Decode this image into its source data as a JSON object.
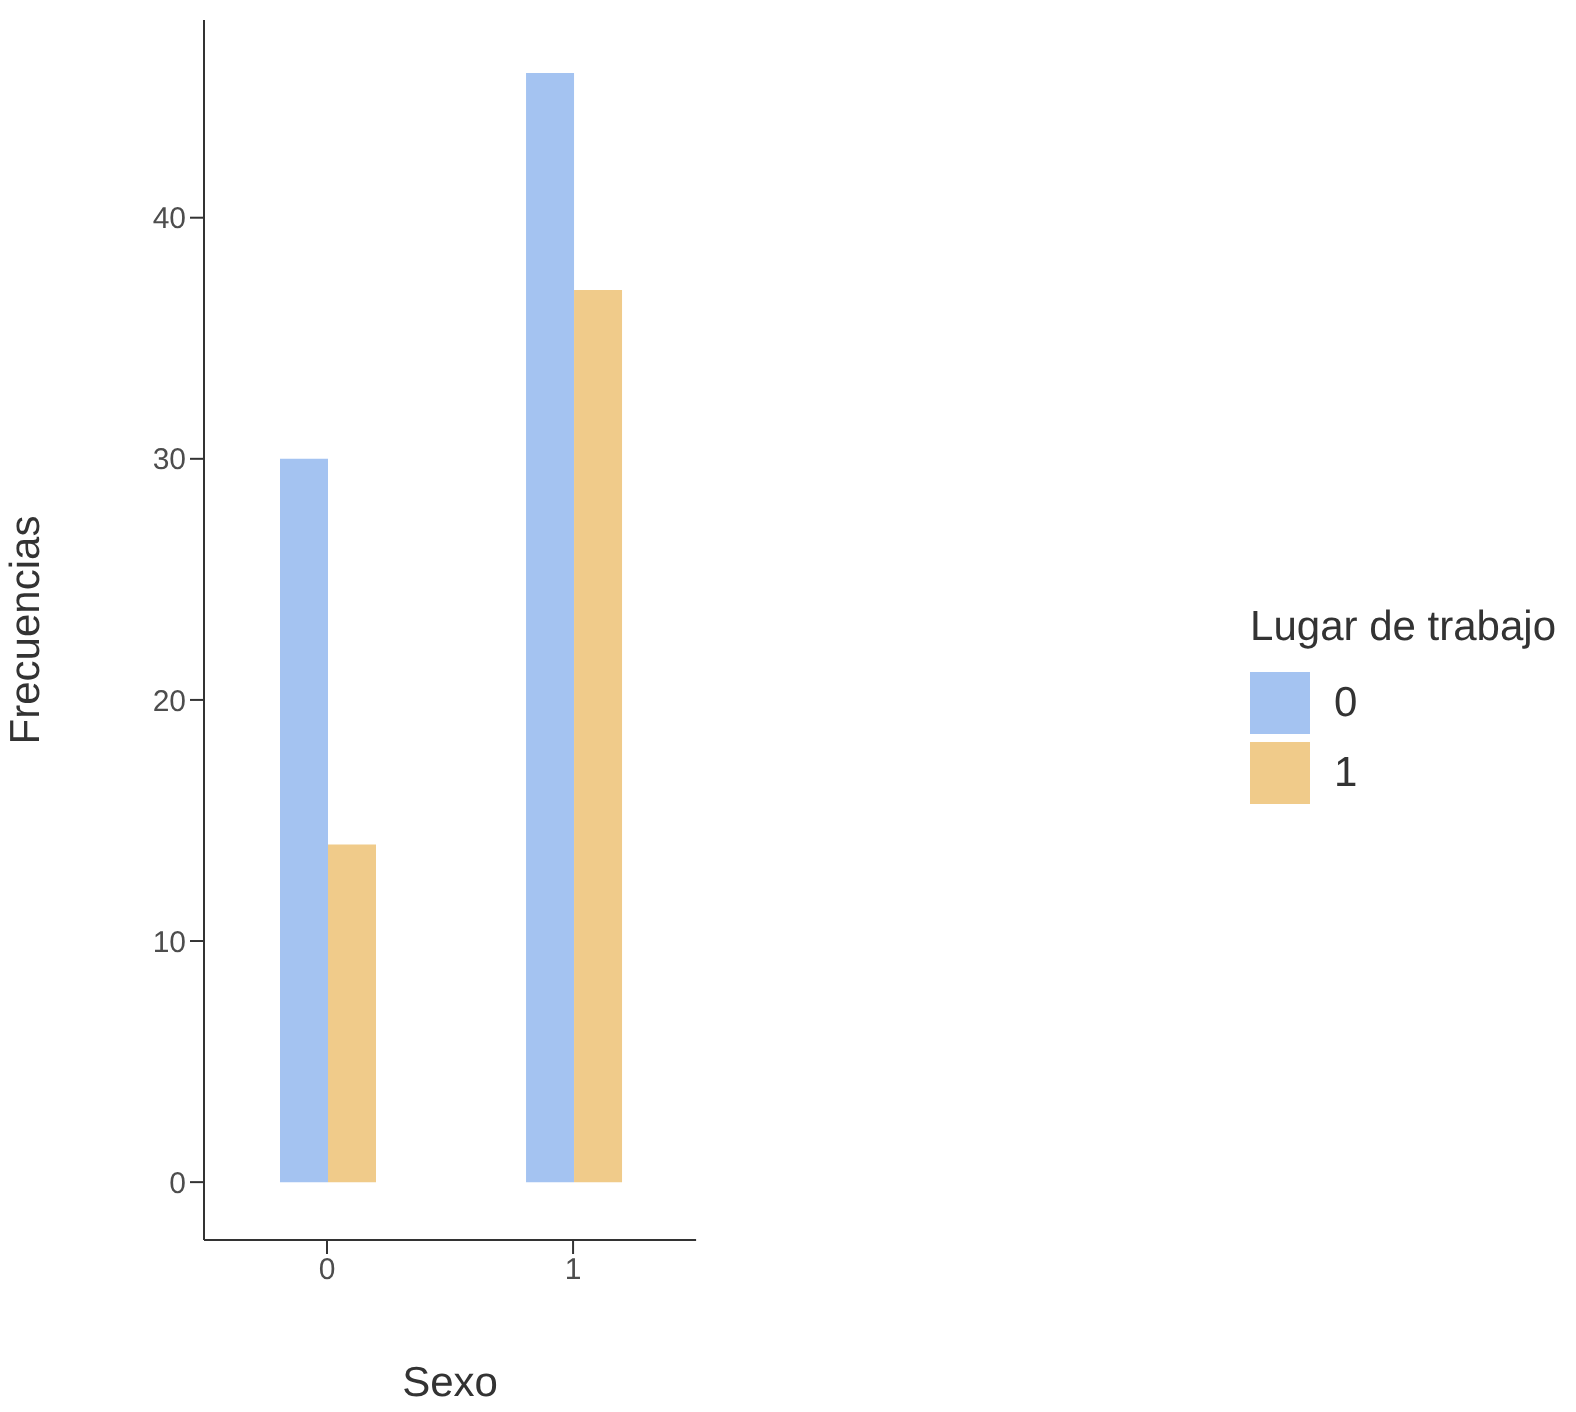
{
  "chart_data": {
    "type": "bar",
    "xlabel": "Sexo",
    "ylabel": "Frecuencias",
    "legend_title": "Lugar de trabajo",
    "categories": [
      "0",
      "1"
    ],
    "series": [
      {
        "name": "0",
        "color": "#a4c3f1",
        "values": [
          30,
          46
        ]
      },
      {
        "name": "1",
        "color": "#f0cb8a",
        "values": [
          14,
          37
        ]
      }
    ],
    "ylim": [
      -2.4,
      48.2
    ],
    "yticks": [
      0,
      10,
      20,
      30,
      40
    ],
    "grid": false,
    "legend": "right"
  }
}
